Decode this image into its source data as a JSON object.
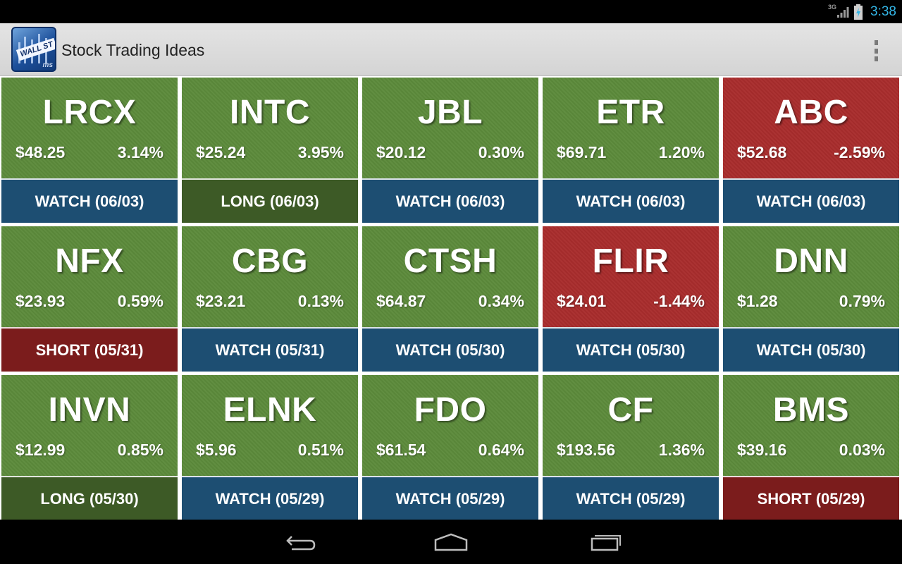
{
  "status_bar": {
    "network": "3G",
    "time": "3:38"
  },
  "app": {
    "title": "Stock Trading Ideas",
    "icon_text": "WALL ST",
    "icon_badge": "ms"
  },
  "tiles": [
    {
      "ticker": "LRCX",
      "price": "$48.25",
      "change": "3.14%",
      "status": "WATCH (06/03)",
      "tone": "green",
      "kind": "watch"
    },
    {
      "ticker": "INTC",
      "price": "$25.24",
      "change": "3.95%",
      "status": "LONG (06/03)",
      "tone": "green",
      "kind": "long"
    },
    {
      "ticker": "JBL",
      "price": "$20.12",
      "change": "0.30%",
      "status": "WATCH (06/03)",
      "tone": "green",
      "kind": "watch"
    },
    {
      "ticker": "ETR",
      "price": "$69.71",
      "change": "1.20%",
      "status": "WATCH (06/03)",
      "tone": "green",
      "kind": "watch"
    },
    {
      "ticker": "ABC",
      "price": "$52.68",
      "change": "-2.59%",
      "status": "WATCH (06/03)",
      "tone": "red",
      "kind": "watch"
    },
    {
      "ticker": "NFX",
      "price": "$23.93",
      "change": "0.59%",
      "status": "SHORT (05/31)",
      "tone": "green",
      "kind": "short"
    },
    {
      "ticker": "CBG",
      "price": "$23.21",
      "change": "0.13%",
      "status": "WATCH (05/31)",
      "tone": "green",
      "kind": "watch"
    },
    {
      "ticker": "CTSH",
      "price": "$64.87",
      "change": "0.34%",
      "status": "WATCH (05/30)",
      "tone": "green",
      "kind": "watch"
    },
    {
      "ticker": "FLIR",
      "price": "$24.01",
      "change": "-1.44%",
      "status": "WATCH (05/30)",
      "tone": "red",
      "kind": "watch"
    },
    {
      "ticker": "DNN",
      "price": "$1.28",
      "change": "0.79%",
      "status": "WATCH (05/30)",
      "tone": "green",
      "kind": "watch"
    },
    {
      "ticker": "INVN",
      "price": "$12.99",
      "change": "0.85%",
      "status": "LONG (05/30)",
      "tone": "green",
      "kind": "long"
    },
    {
      "ticker": "ELNK",
      "price": "$5.96",
      "change": "0.51%",
      "status": "WATCH (05/29)",
      "tone": "green",
      "kind": "watch"
    },
    {
      "ticker": "FDO",
      "price": "$61.54",
      "change": "0.64%",
      "status": "WATCH (05/29)",
      "tone": "green",
      "kind": "watch"
    },
    {
      "ticker": "CF",
      "price": "$193.56",
      "change": "1.36%",
      "status": "WATCH (05/29)",
      "tone": "green",
      "kind": "watch"
    },
    {
      "ticker": "BMS",
      "price": "$39.16",
      "change": "0.03%",
      "status": "SHORT (05/29)",
      "tone": "green",
      "kind": "short"
    }
  ],
  "colors": {
    "tile_green": "#5c8a3b",
    "tile_red": "#a82c2c",
    "watch": "#1d4e72",
    "long": "#3d5a26",
    "short": "#7b1c1c",
    "clock": "#33b5e5"
  },
  "nav_icons": [
    "back-icon",
    "home-icon",
    "recent-apps-icon"
  ]
}
